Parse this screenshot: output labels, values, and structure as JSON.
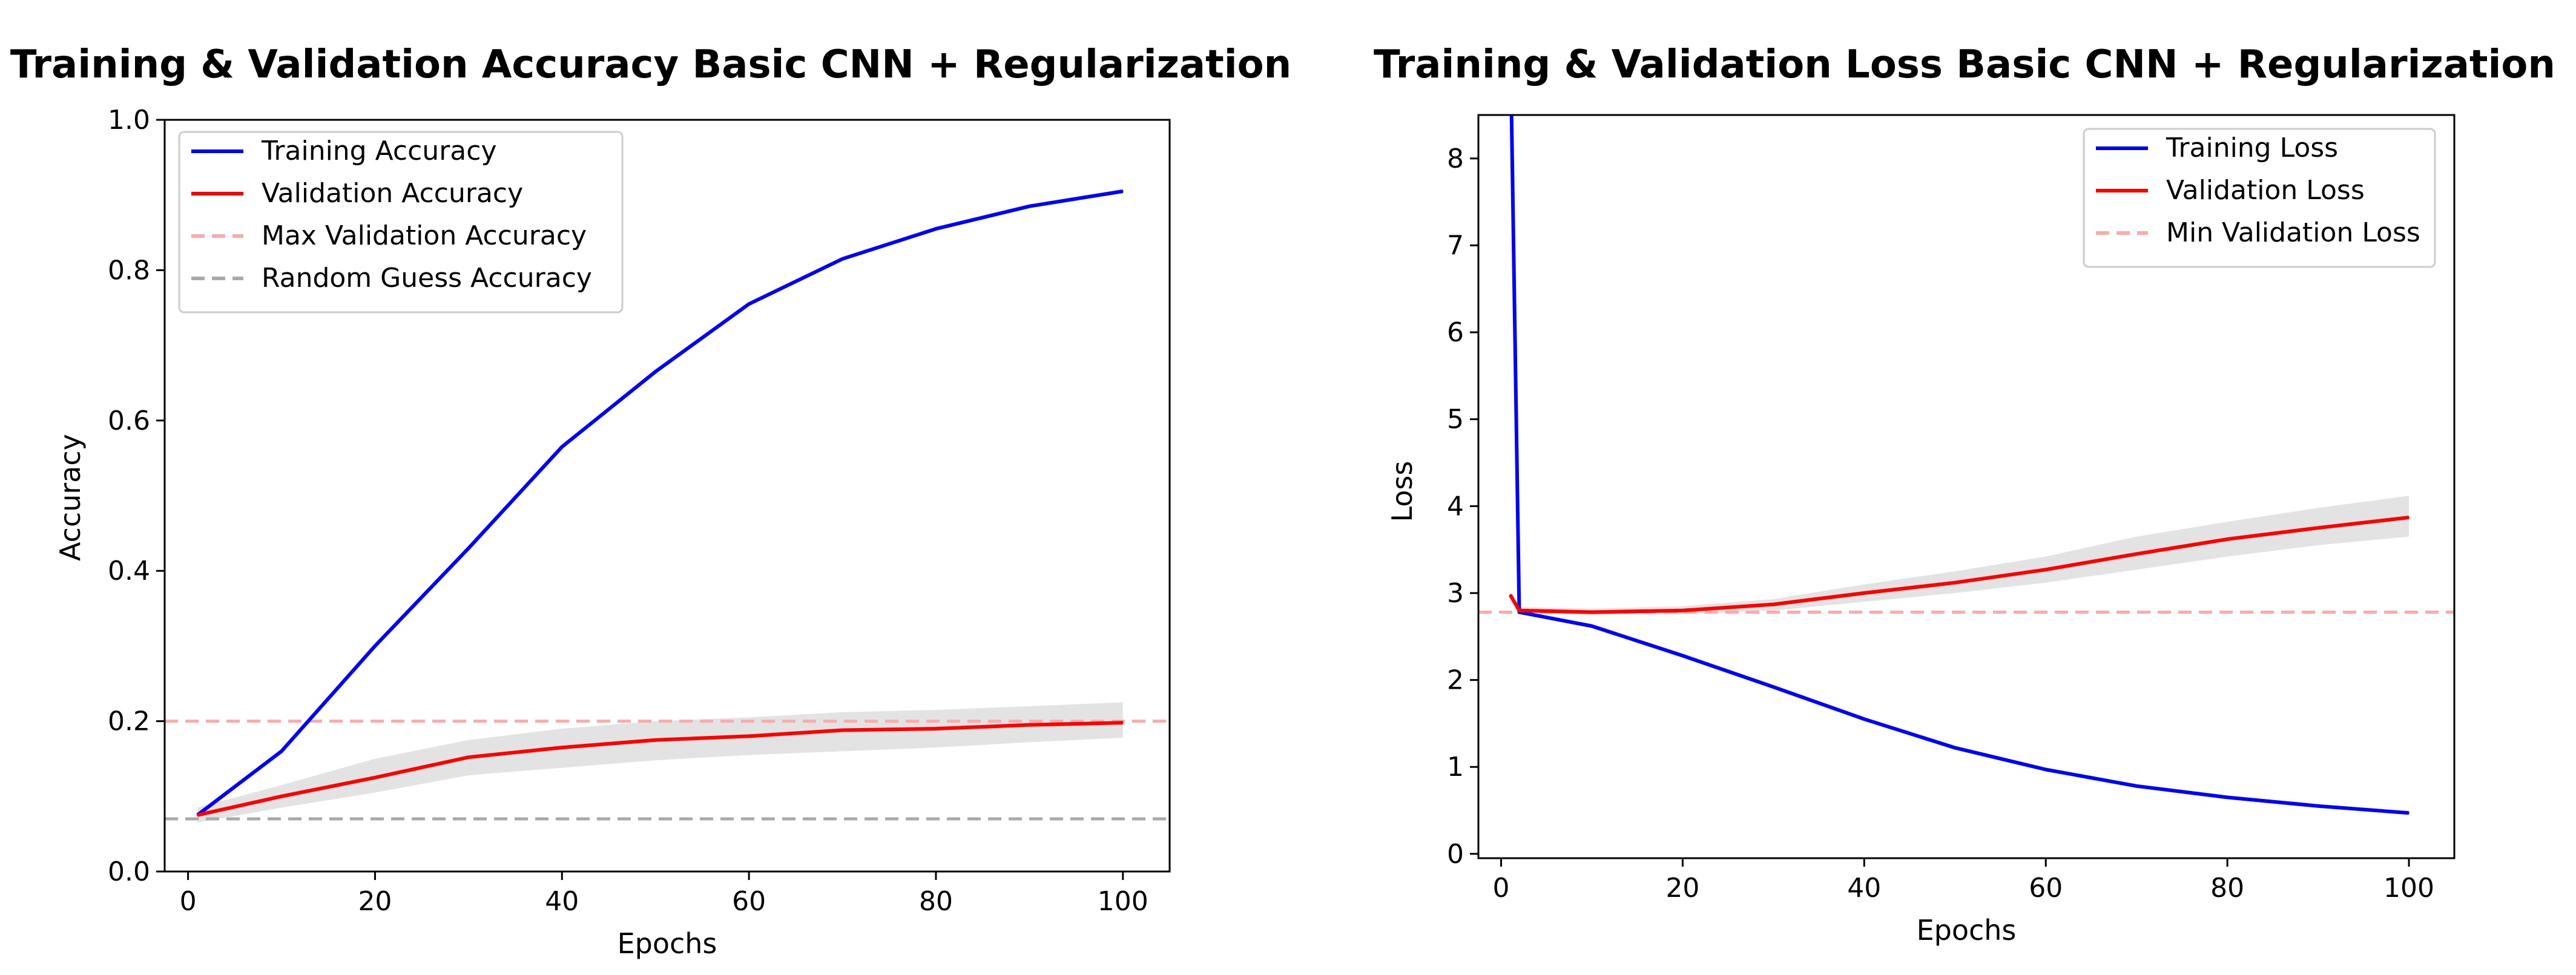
{
  "chart_data": [
    {
      "type": "line",
      "title": "Training & Validation Accuracy Basic CNN + Regularization",
      "xlabel": "Epochs",
      "ylabel": "Accuracy",
      "xlim": [
        -2.5,
        105
      ],
      "ylim": [
        0.0,
        1.0
      ],
      "xticks": [
        0,
        20,
        40,
        60,
        80,
        100
      ],
      "yticks": [
        0.0,
        0.2,
        0.4,
        0.6,
        0.8,
        1.0
      ],
      "ytick_labels": [
        "0.0",
        "0.2",
        "0.4",
        "0.6",
        "0.8",
        "1.0"
      ],
      "grid": false,
      "legend_position": "upper-left",
      "legend": [
        "Training Accuracy",
        "Validation Accuracy",
        "Max Validation Accuracy",
        "Random Guess Accuracy"
      ],
      "x": [
        1,
        10,
        20,
        30,
        40,
        50,
        60,
        70,
        80,
        90,
        100
      ],
      "series": [
        {
          "name": "Training Accuracy",
          "color": "#0000ff",
          "style": "solid",
          "values": [
            0.075,
            0.16,
            0.3,
            0.43,
            0.565,
            0.665,
            0.755,
            0.815,
            0.855,
            0.885,
            0.905
          ]
        },
        {
          "name": "Validation Accuracy",
          "color": "#ff0000",
          "style": "solid",
          "values": [
            0.075,
            0.1,
            0.125,
            0.152,
            0.165,
            0.175,
            0.18,
            0.188,
            0.19,
            0.195,
            0.198
          ],
          "band_low": [
            0.065,
            0.085,
            0.105,
            0.128,
            0.138,
            0.148,
            0.155,
            0.16,
            0.165,
            0.172,
            0.178
          ],
          "band_high": [
            0.085,
            0.115,
            0.15,
            0.175,
            0.19,
            0.2,
            0.205,
            0.212,
            0.215,
            0.22,
            0.225
          ],
          "band_color": "#d9d9d9"
        }
      ],
      "reference_lines": [
        {
          "name": "Max Validation Accuracy",
          "y": 0.2,
          "color": "#ffaaaa",
          "style": "dashed"
        },
        {
          "name": "Random Guess Accuracy",
          "y": 0.07,
          "color": "#a9a9a9",
          "style": "dashed"
        }
      ]
    },
    {
      "type": "line",
      "title": "Training & Validation Loss Basic CNN + Regularization",
      "xlabel": "Epochs",
      "ylabel": "Loss",
      "xlim": [
        -2.5,
        105
      ],
      "ylim": [
        -0.05,
        8.5
      ],
      "xticks": [
        0,
        20,
        40,
        60,
        80,
        100
      ],
      "yticks": [
        0,
        1,
        2,
        3,
        4,
        5,
        6,
        7,
        8
      ],
      "ytick_labels": [
        "0",
        "1",
        "2",
        "3",
        "4",
        "5",
        "6",
        "7",
        "8"
      ],
      "grid": false,
      "legend_position": "upper-right",
      "legend": [
        "Training Loss",
        "Validation Loss",
        "Min Validation Loss"
      ],
      "x": [
        1,
        2,
        10,
        20,
        30,
        40,
        50,
        60,
        70,
        80,
        90,
        100
      ],
      "series": [
        {
          "name": "Training Loss",
          "color": "#0000ff",
          "style": "solid",
          "values": [
            9.5,
            2.78,
            2.62,
            2.28,
            1.92,
            1.55,
            1.22,
            0.97,
            0.78,
            0.65,
            0.55,
            0.47
          ]
        },
        {
          "name": "Validation Loss",
          "color": "#ff0000",
          "style": "solid",
          "values": [
            2.98,
            2.8,
            2.78,
            2.8,
            2.87,
            3.0,
            3.12,
            3.27,
            3.45,
            3.62,
            3.75,
            3.87
          ],
          "band_low": [
            2.95,
            2.77,
            2.75,
            2.76,
            2.8,
            2.9,
            3.0,
            3.12,
            3.27,
            3.42,
            3.55,
            3.65
          ],
          "band_high": [
            3.02,
            2.84,
            2.82,
            2.85,
            2.93,
            3.1,
            3.25,
            3.42,
            3.65,
            3.82,
            3.98,
            4.12
          ],
          "band_color": "#d9d9d9"
        }
      ],
      "reference_lines": [
        {
          "name": "Min Validation Loss",
          "y": 2.78,
          "color": "#ffaaaa",
          "style": "dashed"
        }
      ]
    }
  ]
}
